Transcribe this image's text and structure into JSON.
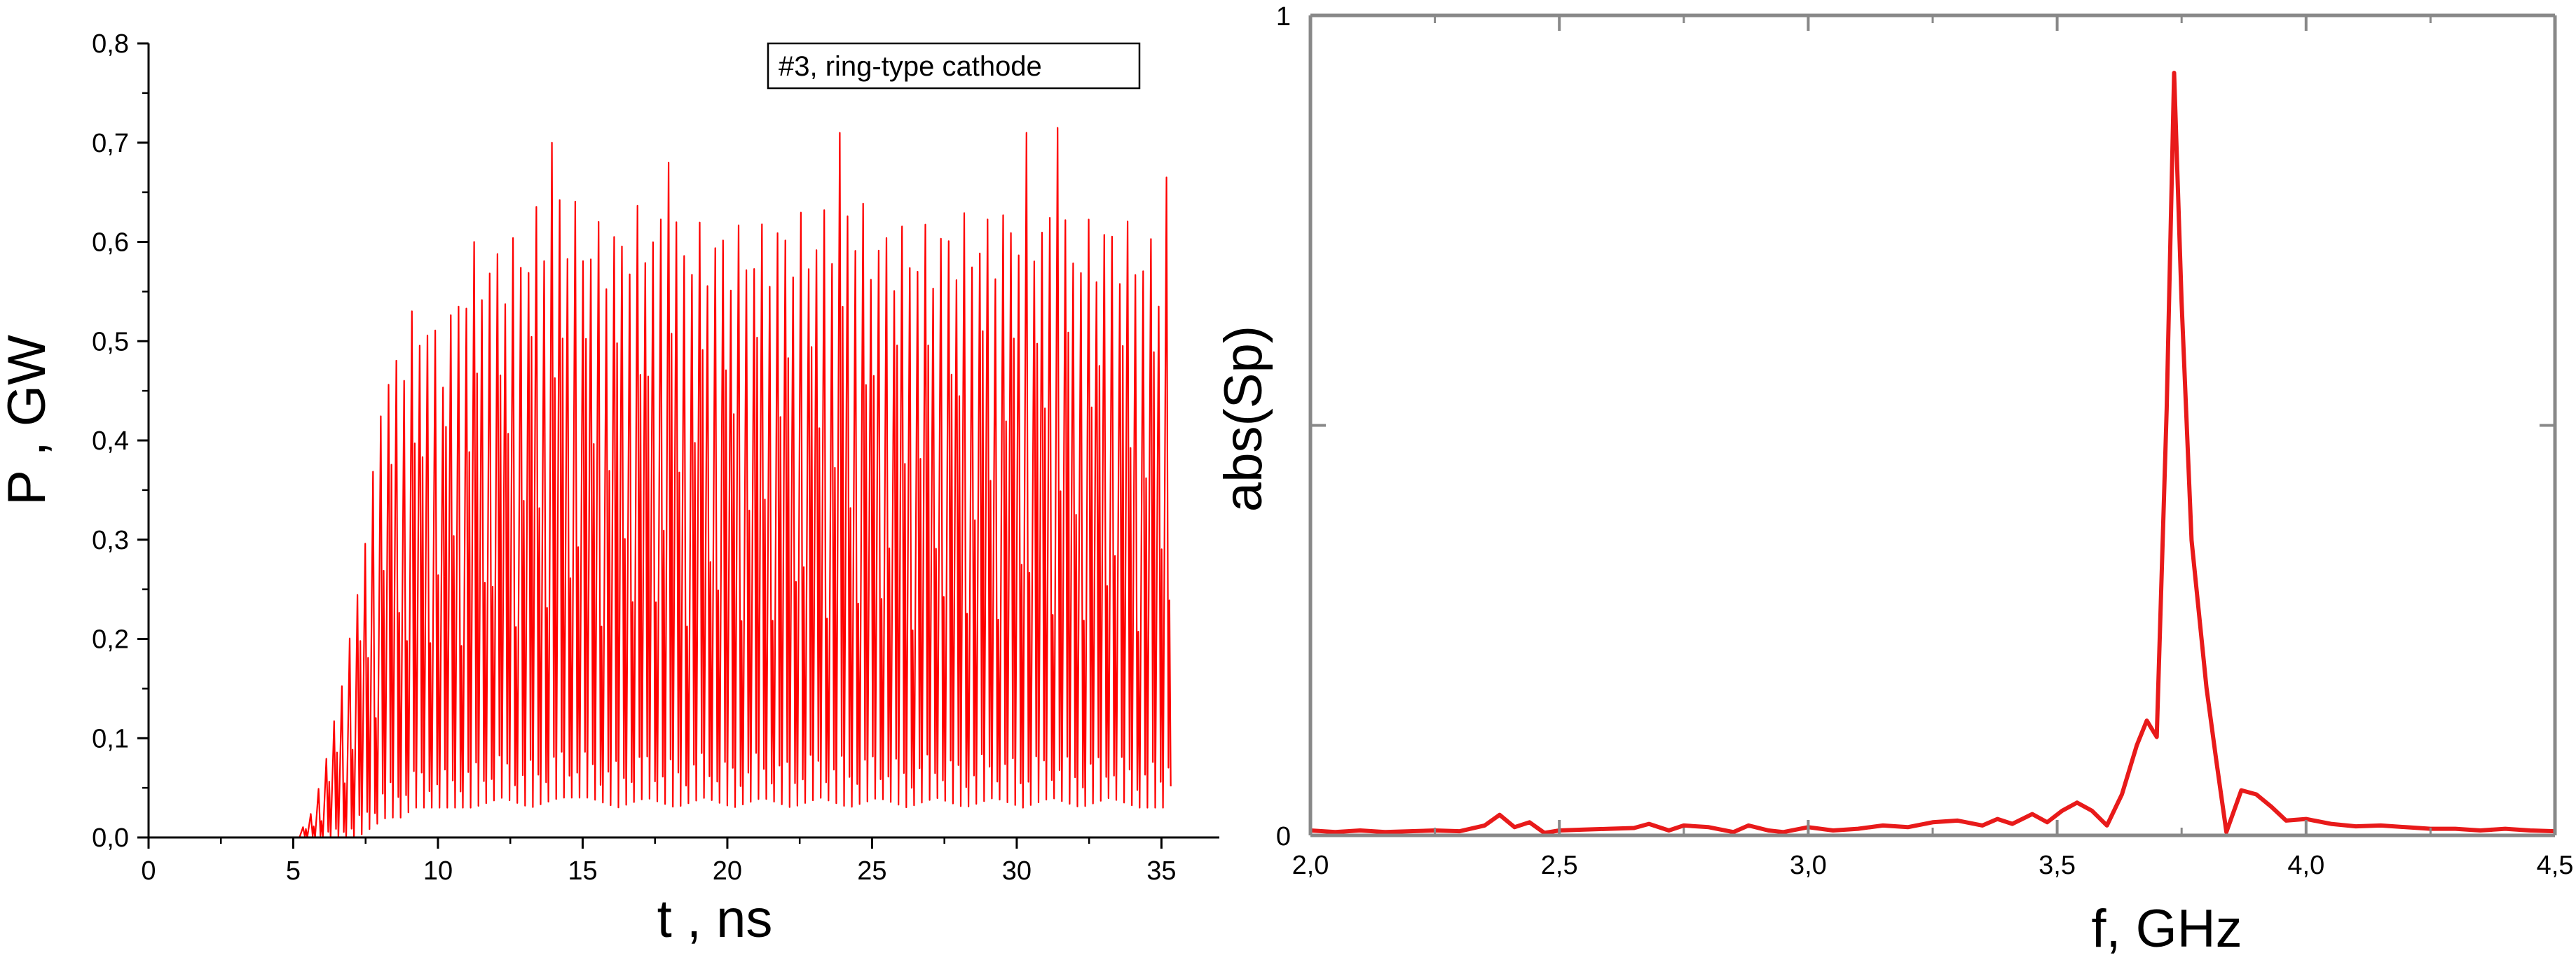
{
  "chart_data": [
    {
      "type": "line",
      "title": "",
      "xlabel": "t , ns",
      "ylabel": "P , GW",
      "xlim": [
        0,
        37
      ],
      "ylim": [
        0,
        0.8
      ],
      "xticks": [
        0,
        5,
        10,
        15,
        20,
        25,
        30,
        35
      ],
      "xtick_labels": [
        "0",
        "5",
        "10",
        "15",
        "20",
        "25",
        "30",
        "35"
      ],
      "yticks": [
        0,
        0.1,
        0.2,
        0.3,
        0.4,
        0.5,
        0.6,
        0.7,
        0.8
      ],
      "ytick_labels": [
        "0,0",
        "0,1",
        "0,2",
        "0,3",
        "0,4",
        "0,5",
        "0,6",
        "0,7",
        "0,8"
      ],
      "grid": false,
      "legend": {
        "position": "top-right",
        "text": "#3, ring-type cathode"
      },
      "line_color": "#ff0000",
      "series": [
        {
          "name": "#3, ring-type cathode",
          "carrier_frequency_GHz": 3.72,
          "envelope": {
            "t": [
              0,
              5,
              5.5,
              6,
              6.5,
              7,
              7.5,
              8,
              8.5,
              9,
              9.5,
              10,
              11,
              12,
              13,
              14,
              15,
              16,
              17,
              18,
              19,
              20,
              21,
              22,
              23,
              24,
              25,
              26,
              27,
              28,
              29,
              30,
              31,
              32,
              33,
              34,
              35,
              35.3
            ],
            "max": [
              0,
              0,
              0.02,
              0.07,
              0.14,
              0.22,
              0.32,
              0.45,
              0.5,
              0.53,
              0.55,
              0.5,
              0.6,
              0.6,
              0.62,
              0.67,
              0.63,
              0.62,
              0.64,
              0.63,
              0.62,
              0.62,
              0.62,
              0.63,
              0.63,
              0.67,
              0.62,
              0.62,
              0.62,
              0.63,
              0.63,
              0.65,
              0.64,
              0.62,
              0.63,
              0.62,
              0.6,
              0.62
            ],
            "min": [
              0,
              0,
              0,
              0,
              0,
              0,
              0.01,
              0.02,
              0.02,
              0.03,
              0.03,
              0.03,
              0.03,
              0.04,
              0.03,
              0.04,
              0.04,
              0.03,
              0.04,
              0.03,
              0.04,
              0.03,
              0.04,
              0.03,
              0.04,
              0.03,
              0.04,
              0.03,
              0.04,
              0.03,
              0.04,
              0.03,
              0.04,
              0.03,
              0.04,
              0.03,
              0.03,
              0.09
            ]
          },
          "peaks": [
            {
              "t": 13.8,
              "value": 0.7
            },
            {
              "t": 17.8,
              "value": 0.68
            },
            {
              "t": 23.8,
              "value": 0.71
            },
            {
              "t": 30.3,
              "value": 0.71
            },
            {
              "t": 31.3,
              "value": 0.715
            },
            {
              "t": 35.2,
              "value": 0.665
            }
          ]
        }
      ]
    },
    {
      "type": "line",
      "title": "",
      "xlabel": "f, GHz",
      "ylabel": "abs(Sp)",
      "xlim": [
        2.0,
        4.5
      ],
      "ylim": [
        0,
        1
      ],
      "xticks": [
        2.0,
        2.5,
        3.0,
        3.5,
        4.0,
        4.5
      ],
      "xtick_labels": [
        "2,0",
        "2,5",
        "3,0",
        "3,5",
        "4,0",
        "4,5"
      ],
      "yticks": [
        0,
        1
      ],
      "ytick_labels": [
        "0",
        "1"
      ],
      "grid": false,
      "line_color": "#e81a1a",
      "series": [
        {
          "name": "",
          "x": [
            2.0,
            2.05,
            2.1,
            2.15,
            2.2,
            2.25,
            2.3,
            2.35,
            2.38,
            2.41,
            2.44,
            2.47,
            2.5,
            2.55,
            2.6,
            2.65,
            2.68,
            2.72,
            2.75,
            2.8,
            2.85,
            2.88,
            2.92,
            2.95,
            3.0,
            3.05,
            3.1,
            3.15,
            3.2,
            3.25,
            3.3,
            3.35,
            3.38,
            3.41,
            3.45,
            3.48,
            3.51,
            3.54,
            3.57,
            3.6,
            3.63,
            3.66,
            3.68,
            3.7,
            3.72,
            3.735,
            3.75,
            3.77,
            3.8,
            3.82,
            3.84,
            3.87,
            3.9,
            3.93,
            3.96,
            4.0,
            4.05,
            4.1,
            4.15,
            4.2,
            4.25,
            4.3,
            4.35,
            4.4,
            4.45,
            4.5
          ],
          "y": [
            0.006,
            0.004,
            0.006,
            0.004,
            0.005,
            0.006,
            0.005,
            0.012,
            0.025,
            0.01,
            0.016,
            0.003,
            0.006,
            0.007,
            0.008,
            0.009,
            0.014,
            0.006,
            0.012,
            0.01,
            0.004,
            0.012,
            0.006,
            0.004,
            0.01,
            0.006,
            0.008,
            0.012,
            0.01,
            0.016,
            0.018,
            0.012,
            0.02,
            0.014,
            0.026,
            0.016,
            0.03,
            0.04,
            0.03,
            0.012,
            0.05,
            0.11,
            0.14,
            0.12,
            0.52,
            0.93,
            0.65,
            0.36,
            0.18,
            0.09,
            0.004,
            0.055,
            0.05,
            0.035,
            0.018,
            0.02,
            0.014,
            0.011,
            0.012,
            0.01,
            0.008,
            0.008,
            0.006,
            0.008,
            0.006,
            0.005
          ]
        }
      ]
    }
  ]
}
